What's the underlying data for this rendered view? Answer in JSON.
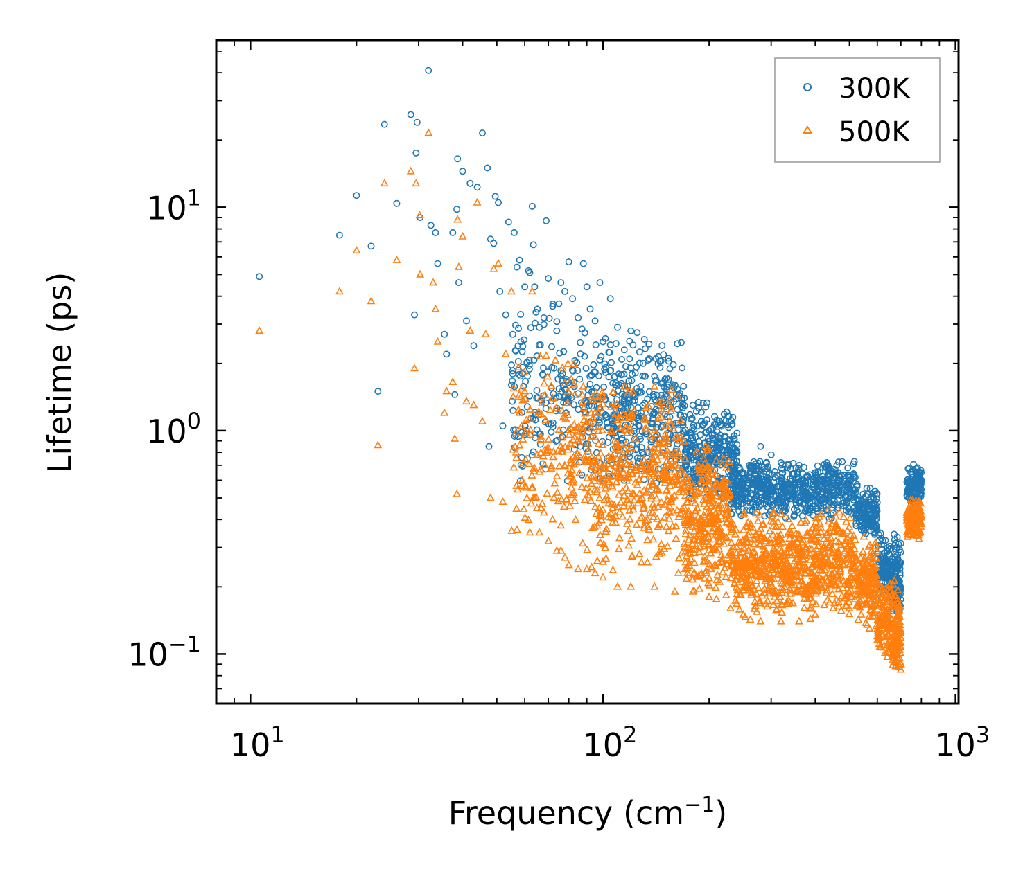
{
  "chart_data": {
    "type": "scatter",
    "title": "",
    "xlabel": "Frequency (cm",
    "xlabel_sup": "−1",
    "xlabel_end": ")",
    "ylabel": "Lifetime (ps)",
    "xscale": "log",
    "yscale": "log",
    "xlim": [
      8,
      1020
    ],
    "ylim": [
      0.06,
      56
    ],
    "x_ticks": [
      {
        "value": 10,
        "base": "10",
        "exp": "1"
      },
      {
        "value": 100,
        "base": "10",
        "exp": "2"
      },
      {
        "value": 1000,
        "base": "10",
        "exp": "3"
      }
    ],
    "y_ticks": [
      {
        "value": 0.1,
        "base": "10",
        "exp": "−1"
      },
      {
        "value": 1,
        "base": "10",
        "exp": "0"
      },
      {
        "value": 10,
        "base": "10",
        "exp": "1"
      }
    ],
    "legend_position": "top-right",
    "series": [
      {
        "name": "300K",
        "marker": "circle",
        "color": "#1f77b4",
        "points": [
          [
            10.6,
            4.9
          ],
          [
            17.9,
            7.5
          ],
          [
            20,
            11.3
          ],
          [
            22,
            6.7
          ],
          [
            23,
            1.5
          ],
          [
            24,
            23.5
          ],
          [
            26,
            10.4
          ],
          [
            28.5,
            26
          ],
          [
            29.2,
            3.3
          ],
          [
            29.5,
            17.5
          ],
          [
            29.7,
            24
          ],
          [
            30.3,
            9
          ],
          [
            32,
            41
          ],
          [
            32.5,
            8.3
          ],
          [
            33.5,
            7.7
          ],
          [
            34,
            5.6
          ],
          [
            35.5,
            2.7
          ],
          [
            36,
            2.2
          ],
          [
            37.5,
            7.7
          ],
          [
            38,
            1.45
          ],
          [
            38.5,
            9.8
          ],
          [
            38.7,
            16.5
          ],
          [
            39,
            4.6
          ],
          [
            40,
            14.5
          ],
          [
            41,
            3.1
          ],
          [
            42,
            12.8
          ],
          [
            43,
            2.4
          ],
          [
            44,
            12.3
          ],
          [
            45.5,
            21.5
          ],
          [
            47,
            15
          ],
          [
            47.5,
            0.85
          ],
          [
            48,
            7.2
          ],
          [
            49,
            6.9
          ],
          [
            49.5,
            11.2
          ],
          [
            50.5,
            10.5
          ],
          [
            51,
            4.2
          ],
          [
            52,
            1.05
          ],
          [
            53,
            3.3
          ],
          [
            54,
            8.6
          ],
          [
            55,
            1.6
          ],
          [
            55.5,
            2.7
          ],
          [
            56,
            7.7
          ],
          [
            57,
            5.4
          ],
          [
            58,
            5.8
          ],
          [
            58.5,
            2.5
          ],
          [
            59,
            1.8
          ],
          [
            60,
            4.4
          ],
          [
            61,
            0.75
          ],
          [
            61.5,
            5.2
          ],
          [
            62,
            5.1
          ],
          [
            63,
            10.1
          ],
          [
            63.5,
            6.8
          ],
          [
            64,
            4.4
          ],
          [
            66,
            2.9
          ],
          [
            68,
            3.2
          ],
          [
            69,
            8.7
          ],
          [
            70,
            4.8
          ],
          [
            72,
            3.6
          ],
          [
            74,
            2.8
          ],
          [
            75,
            3.7
          ],
          [
            76,
            4.6
          ],
          [
            78,
            4.2
          ],
          [
            80,
            5.7
          ],
          [
            82,
            3.9
          ],
          [
            85,
            3.2
          ],
          [
            88,
            5.6
          ],
          [
            90,
            4.4
          ],
          [
            92,
            3.5
          ],
          [
            95,
            3.1
          ],
          [
            98,
            4.6
          ],
          [
            100,
            2.5
          ],
          [
            105,
            3.9
          ],
          [
            110,
            2.9
          ],
          [
            115,
            2.3
          ],
          [
            120,
            2.8
          ],
          [
            125,
            2.75
          ],
          [
            130,
            2.0
          ],
          [
            135,
            2.1
          ],
          [
            140,
            1.75
          ],
          [
            145,
            2.05
          ],
          [
            150,
            1.7
          ],
          [
            160,
            1.6
          ],
          [
            170,
            1.4
          ],
          [
            180,
            1.3
          ],
          [
            190,
            1.1
          ],
          [
            200,
            1.0
          ],
          [
            220,
            0.9
          ],
          [
            240,
            0.8
          ],
          [
            260,
            0.7
          ],
          [
            280,
            0.85
          ],
          [
            300,
            0.78
          ],
          [
            320,
            0.72
          ],
          [
            360,
            0.7
          ],
          [
            400,
            0.65
          ],
          [
            450,
            0.65
          ],
          [
            500,
            0.6
          ]
        ],
        "bands": [
          [
            55,
            90,
            0.55,
            3.8,
            170
          ],
          [
            90,
            170,
            0.5,
            2.8,
            380
          ],
          [
            170,
            240,
            0.45,
            1.4,
            300
          ],
          [
            230,
            520,
            0.4,
            0.75,
            650
          ],
          [
            520,
            600,
            0.32,
            0.58,
            150
          ],
          [
            600,
            700,
            0.17,
            0.35,
            160
          ],
          [
            660,
            700,
            0.15,
            0.22,
            60
          ],
          [
            728,
            800,
            0.46,
            0.71,
            140
          ]
        ]
      },
      {
        "name": "500K",
        "marker": "triangle",
        "color": "#ff7f0e",
        "points": [
          [
            10.6,
            2.8
          ],
          [
            17.9,
            4.2
          ],
          [
            20,
            6.4
          ],
          [
            22,
            3.8
          ],
          [
            23,
            0.86
          ],
          [
            24,
            12.8
          ],
          [
            26,
            5.8
          ],
          [
            28.5,
            14.5
          ],
          [
            29.2,
            1.9
          ],
          [
            29.5,
            12.8
          ],
          [
            30.2,
            9.2
          ],
          [
            30.3,
            5.0
          ],
          [
            32,
            21.5
          ],
          [
            33,
            4.6
          ],
          [
            33.5,
            3.5
          ],
          [
            34,
            2.5
          ],
          [
            35.5,
            1.2
          ],
          [
            36,
            1.5
          ],
          [
            37.5,
            1.65
          ],
          [
            38,
            0.92
          ],
          [
            38.5,
            0.52
          ],
          [
            38.7,
            8.8
          ],
          [
            39,
            5.4
          ],
          [
            40,
            7.4
          ],
          [
            41,
            1.35
          ],
          [
            42,
            2.8
          ],
          [
            43,
            1.3
          ],
          [
            44,
            10.5
          ],
          [
            45.5,
            1.1
          ],
          [
            46.5,
            2.7
          ],
          [
            48,
            0.5
          ],
          [
            49,
            5.3
          ],
          [
            50.5,
            5.6
          ],
          [
            52,
            0.48
          ],
          [
            53,
            2.2
          ],
          [
            55,
            4.2
          ],
          [
            57,
            0.36
          ],
          [
            58,
            1.2
          ],
          [
            59,
            0.6
          ],
          [
            60,
            1.5
          ],
          [
            62,
            0.35
          ],
          [
            63,
            4.2
          ],
          [
            64,
            0.5
          ],
          [
            65,
            0.45
          ],
          [
            66,
            0.35
          ],
          [
            68,
            0.43
          ],
          [
            70,
            0.32
          ],
          [
            72,
            0.4
          ],
          [
            74,
            0.29
          ],
          [
            76,
            0.29
          ],
          [
            78,
            0.27
          ],
          [
            80,
            0.25
          ],
          [
            85,
            0.24
          ],
          [
            90,
            0.24
          ],
          [
            95,
            0.23
          ],
          [
            100,
            0.22
          ],
          [
            110,
            0.2
          ],
          [
            120,
            0.2
          ],
          [
            140,
            0.2
          ],
          [
            160,
            0.19
          ],
          [
            180,
            0.19
          ],
          [
            200,
            0.18
          ],
          [
            230,
            0.16
          ],
          [
            250,
            0.15
          ],
          [
            280,
            0.14
          ],
          [
            320,
            0.14
          ],
          [
            360,
            0.14
          ],
          [
            400,
            0.15
          ],
          [
            450,
            0.16
          ],
          [
            500,
            0.16
          ],
          [
            540,
            0.15
          ],
          [
            570,
            0.13
          ],
          [
            600,
            0.12
          ],
          [
            640,
            0.11
          ],
          [
            680,
            0.1
          ],
          [
            700,
            0.085
          ],
          [
            700,
            0.09
          ]
        ],
        "bands": [
          [
            55,
            90,
            0.3,
            2.4,
            180
          ],
          [
            90,
            170,
            0.22,
            1.7,
            420
          ],
          [
            170,
            230,
            0.17,
            0.9,
            320
          ],
          [
            230,
            520,
            0.14,
            0.45,
            750
          ],
          [
            520,
            600,
            0.13,
            0.35,
            170
          ],
          [
            600,
            700,
            0.09,
            0.22,
            170
          ],
          [
            660,
            700,
            0.085,
            0.13,
            60
          ],
          [
            728,
            800,
            0.32,
            0.5,
            140
          ]
        ]
      }
    ]
  }
}
